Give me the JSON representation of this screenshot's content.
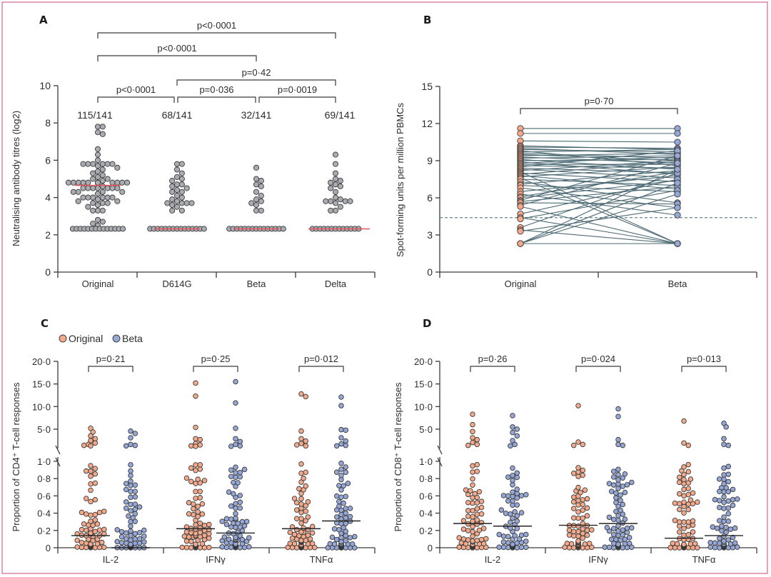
{
  "colors": {
    "original": "#f4a98a",
    "beta": "#95a7d6",
    "grey_point": "#a9adb2",
    "point_stroke": "#3a3a3a",
    "median_red": "#e8525a",
    "median_black": "#222222",
    "paired_line": "#4d6a74",
    "threshold_line": "#5f8591",
    "axis": "#3a3a3a",
    "frame": "#e2a3bd"
  },
  "chart_data": [
    {
      "panel": "A",
      "type": "scatter",
      "subtype": "dot-plot",
      "ylabel": "Neutralising antibody titres (log2)",
      "ylim": [
        0,
        10
      ],
      "yticks": [
        "0",
        "2",
        "4",
        "6",
        "8",
        "10"
      ],
      "categories": [
        "Original",
        "D614G",
        "Beta",
        "Delta"
      ],
      "responder_counts": [
        "115/141",
        "68/141",
        "32/141",
        "69/141"
      ],
      "medians": [
        4.65,
        2.32,
        2.32,
        2.32
      ],
      "series": [
        {
          "name": "Original",
          "lod_count": 14,
          "values": [
            7.8,
            7.8,
            7.5,
            7.4,
            6.6,
            6.3,
            6.0,
            5.8,
            5.8,
            5.8,
            5.8,
            5.8,
            5.8,
            5.7,
            5.6,
            5.5,
            5.4,
            5.3,
            5.2,
            5.1,
            5.0,
            5.0,
            4.9,
            4.8,
            4.8,
            4.8,
            4.8,
            4.8,
            4.8,
            4.8,
            4.8,
            4.8,
            4.8,
            4.8,
            4.8,
            4.8,
            4.8,
            4.6,
            4.5,
            4.5,
            4.5,
            4.5,
            4.5,
            4.5,
            4.5,
            4.3,
            4.3,
            4.3,
            4.3,
            4.2,
            4.0,
            4.0,
            4.0,
            4.0,
            4.0,
            4.0,
            3.9,
            3.8,
            3.8,
            3.7,
            3.7,
            3.7,
            3.6,
            3.5,
            3.3,
            3.3,
            3.3,
            2.8,
            2.7,
            2.6,
            2.5
          ]
        },
        {
          "name": "D614G",
          "lod_count": 15,
          "values": [
            5.8,
            5.8,
            5.5,
            5.3,
            5.1,
            5.0,
            4.9,
            4.7,
            4.7,
            4.6,
            4.5,
            4.4,
            4.3,
            4.3,
            4.1,
            4.0,
            3.9,
            3.8,
            3.7,
            3.7,
            3.7,
            3.7,
            3.6,
            3.5,
            3.3,
            3.3
          ]
        },
        {
          "name": "Beta",
          "lod_count": 15,
          "values": [
            5.6,
            5.0,
            4.9,
            4.7,
            4.6,
            4.3,
            4.1,
            3.9,
            3.8,
            3.7,
            3.6,
            3.3,
            3.3
          ]
        },
        {
          "name": "Delta",
          "lod_count": 13,
          "values": [
            6.3,
            5.8,
            5.3,
            5.0,
            4.9,
            4.8,
            4.7,
            4.6,
            4.5,
            4.3,
            4.0,
            3.9,
            3.8,
            3.8,
            3.8,
            3.8,
            3.7,
            3.5,
            3.3,
            3.3
          ]
        }
      ],
      "lod_value": 2.32,
      "comparisons": [
        {
          "from": 0,
          "to": 3,
          "label": "p<0·0001"
        },
        {
          "from": 0,
          "to": 2,
          "label": "p<0·0001"
        },
        {
          "from": 1,
          "to": 3,
          "label": "p=0·42"
        },
        {
          "from": 0,
          "to": 1,
          "label": "p<0·0001"
        },
        {
          "from": 1,
          "to": 2,
          "label": "p=0·036"
        },
        {
          "from": 2,
          "to": 3,
          "label": "p=0·0019"
        }
      ]
    },
    {
      "panel": "B",
      "type": "line",
      "subtype": "paired",
      "ylabel": "Spot-forming units per million PBMCs",
      "ylim": [
        0,
        15
      ],
      "yticks": [
        "0",
        "3",
        "6",
        "9",
        "12",
        "15"
      ],
      "categories": [
        "Original",
        "Beta"
      ],
      "threshold": 4.4,
      "comparison": {
        "label": "p=0·70"
      },
      "pairs": [
        [
          11.6,
          11.6
        ],
        [
          11.2,
          11.2
        ],
        [
          10.6,
          10.5
        ],
        [
          10.2,
          9.9
        ],
        [
          10.1,
          10.0
        ],
        [
          10.0,
          9.5
        ],
        [
          9.9,
          9.7
        ],
        [
          9.8,
          8.6
        ],
        [
          9.7,
          9.9
        ],
        [
          9.6,
          9.2
        ],
        [
          9.5,
          9.0
        ],
        [
          9.4,
          9.6
        ],
        [
          9.3,
          8.8
        ],
        [
          9.2,
          9.4
        ],
        [
          9.1,
          8.3
        ],
        [
          9.0,
          9.1
        ],
        [
          8.9,
          7.9
        ],
        [
          8.8,
          9.3
        ],
        [
          8.7,
          8.7
        ],
        [
          8.6,
          8.4
        ],
        [
          8.5,
          9.8
        ],
        [
          8.4,
          8.0
        ],
        [
          8.3,
          7.6
        ],
        [
          8.2,
          9.0
        ],
        [
          8.1,
          2.3
        ],
        [
          8.0,
          7.3
        ],
        [
          7.9,
          8.9
        ],
        [
          7.8,
          6.7
        ],
        [
          7.7,
          8.5
        ],
        [
          7.6,
          2.3
        ],
        [
          7.5,
          7.0
        ],
        [
          7.3,
          5.6
        ],
        [
          7.1,
          8.2
        ],
        [
          7.0,
          6.5
        ],
        [
          6.8,
          5.2
        ],
        [
          6.5,
          7.8
        ],
        [
          6.3,
          4.6
        ],
        [
          6.1,
          8.1
        ],
        [
          6.0,
          7.4
        ],
        [
          5.8,
          9.4
        ],
        [
          5.7,
          6.9
        ],
        [
          5.6,
          5.5
        ],
        [
          5.4,
          8.8
        ],
        [
          5.3,
          2.3
        ],
        [
          4.7,
          7.5
        ],
        [
          4.4,
          2.3
        ],
        [
          4.3,
          6.6
        ],
        [
          3.6,
          8.0
        ],
        [
          3.4,
          2.3
        ],
        [
          3.3,
          5.2
        ],
        [
          2.3,
          7.2
        ],
        [
          2.3,
          6.3
        ],
        [
          2.3,
          2.3
        ],
        [
          2.3,
          8.3
        ]
      ]
    },
    {
      "panel": "C",
      "type": "scatter",
      "subtype": "dot-plot-broken-axis",
      "ylabel": "Proportion of CD4⁺ T-cell responses",
      "yticks_lower": [
        "0",
        "0·2",
        "0·4",
        "0·6",
        "0·8",
        "1·0"
      ],
      "yticks_upper": [
        "5·0",
        "10·0",
        "15·0",
        "20·0"
      ],
      "ylim_lower": [
        0,
        1
      ],
      "ylim_upper": [
        1,
        20
      ],
      "categories": [
        "IL-2",
        "IFNγ",
        "TNFα"
      ],
      "legend": [
        {
          "name": "Original"
        },
        {
          "name": "Beta"
        }
      ],
      "legend_position": "top-left",
      "groups": [
        {
          "label": "p=0·21",
          "original": {
            "median": 0.14,
            "high": [
              5.2,
              4.4,
              3.6,
              3.0,
              2.6,
              2.1,
              1.8,
              1.6,
              1.5
            ]
          },
          "beta": {
            "median": 0.0,
            "high": [
              4.6,
              4.1,
              3.2,
              1.8,
              1.6,
              1.5
            ]
          }
        },
        {
          "label": "p=0·25",
          "original": {
            "median": 0.22,
            "high": [
              15.2,
              12.3,
              5.4,
              3.0,
              2.8,
              2.0,
              1.7,
              1.5,
              1.4
            ]
          },
          "beta": {
            "median": 0.17,
            "high": [
              15.5,
              10.8,
              5.2,
              3.0,
              2.4,
              1.8,
              1.5,
              1.4
            ]
          }
        },
        {
          "label": "p=0·012",
          "original": {
            "median": 0.22,
            "high": [
              12.8,
              12.2,
              4.6,
              3.0,
              2.5,
              2.0,
              1.7,
              1.5
            ]
          },
          "beta": {
            "median": 0.31,
            "high": [
              12.1,
              10.2,
              4.9,
              4.8,
              3.2,
              2.5,
              1.9,
              1.6,
              1.5
            ]
          }
        }
      ]
    },
    {
      "panel": "D",
      "type": "scatter",
      "subtype": "dot-plot-broken-axis",
      "ylabel": "Proportion of CD8⁺ T-cell responses",
      "yticks_lower": [
        "0",
        "0·2",
        "0·4",
        "0·6",
        "0·8",
        "1·0"
      ],
      "yticks_upper": [
        "5·0",
        "10·0",
        "15·0",
        "20·0"
      ],
      "ylim_lower": [
        0,
        1
      ],
      "ylim_upper": [
        1,
        20
      ],
      "categories": [
        "IL-2",
        "IFNγ",
        "TNFα"
      ],
      "groups": [
        {
          "label": "p=0·26",
          "original": {
            "median": 0.28,
            "high": [
              8.3,
              6.0,
              4.5,
              3.2,
              2.8,
              2.2,
              1.8,
              1.6
            ]
          },
          "beta": {
            "median": 0.25,
            "high": [
              8.0,
              5.5,
              5.0,
              4.3,
              3.6,
              2.6,
              1.8,
              1.5
            ]
          }
        },
        {
          "label": "p=0·024",
          "original": {
            "median": 0.26,
            "high": [
              10.2,
              2.3,
              1.8,
              1.6
            ]
          },
          "beta": {
            "median": 0.28,
            "high": [
              9.5,
              7.8,
              2.8,
              1.8,
              1.6
            ]
          }
        },
        {
          "label": "p=0·013",
          "original": {
            "median": 0.11,
            "high": [
              6.8,
              2.1,
              1.6
            ]
          },
          "beta": {
            "median": 0.14,
            "high": [
              6.3,
              5.5,
              3.0,
              1.8,
              1.6
            ]
          }
        }
      ]
    }
  ]
}
